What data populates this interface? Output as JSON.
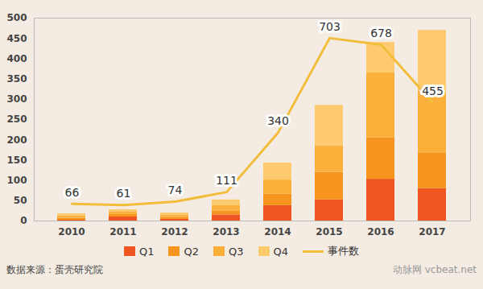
{
  "chart_data": {
    "type": "bar",
    "stacked": true,
    "categories": [
      "2010",
      "2011",
      "2012",
      "2013",
      "2014",
      "2015",
      "2016",
      "2017"
    ],
    "series": [
      {
        "name": "Q1",
        "color": "#ee5522",
        "values": [
          2,
          10,
          4,
          15,
          38,
          52,
          103,
          80
        ]
      },
      {
        "name": "Q2",
        "color": "#f7941d",
        "values": [
          5,
          6,
          5,
          10,
          28,
          68,
          102,
          88
        ]
      },
      {
        "name": "Q3",
        "color": "#fbb03b",
        "values": [
          6,
          7,
          6,
          13,
          35,
          65,
          160,
          152
        ]
      },
      {
        "name": "Q4",
        "color": "#fdca70",
        "values": [
          5,
          5,
          5,
          14,
          42,
          100,
          75,
          150
        ]
      },
      {
        "name": "事件数",
        "type": "line",
        "axis": "y2",
        "color": "#f2bd3a",
        "data_labels": true,
        "values": [
          66,
          61,
          74,
          111,
          340,
          703,
          678,
          455
        ]
      }
    ],
    "ylim": [
      0,
      500
    ],
    "yticks": [
      0,
      50,
      100,
      150,
      200,
      250,
      300,
      350,
      400,
      450,
      500
    ],
    "y2lim": [
      0,
      780
    ],
    "grid": false,
    "legend": "bottom",
    "caption": "数据来源：蛋壳研究院",
    "annotations": [
      "动脉网 vcbeat.net"
    ]
  }
}
